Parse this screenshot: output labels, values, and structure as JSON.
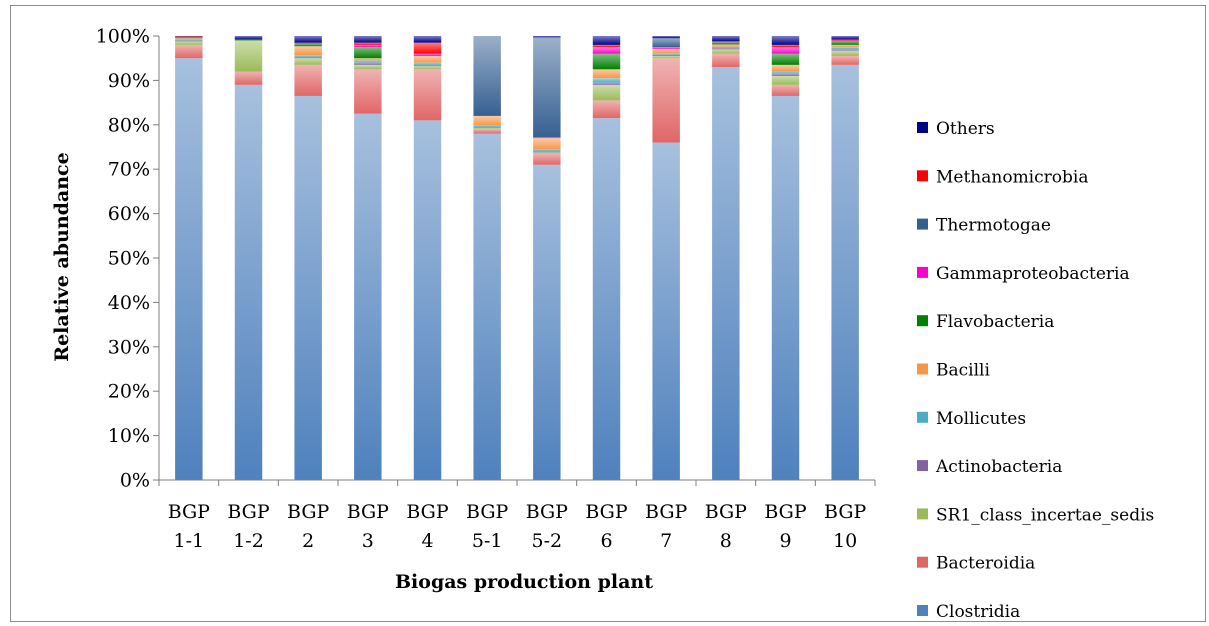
{
  "chart_data": {
    "type": "bar",
    "stacked": true,
    "percent": true,
    "title": "",
    "xlabel": "Biogas production plant",
    "ylabel": "Relative abundance",
    "ylim": [
      0,
      100
    ],
    "yticks": [
      "0%",
      "10%",
      "20%",
      "30%",
      "40%",
      "50%",
      "60%",
      "70%",
      "80%",
      "90%",
      "100%"
    ],
    "legend_position": "right",
    "gridlines": false,
    "categories": [
      [
        "BGP",
        "1-1"
      ],
      [
        "BGP",
        "1-2"
      ],
      [
        "BGP",
        "2"
      ],
      [
        "BGP",
        "3"
      ],
      [
        "BGP",
        "4"
      ],
      [
        "BGP",
        "5-1"
      ],
      [
        "BGP",
        "5-2"
      ],
      [
        "BGP",
        "6"
      ],
      [
        "BGP",
        "7"
      ],
      [
        "BGP",
        "8"
      ],
      [
        "BGP",
        "9"
      ],
      [
        "BGP",
        "10"
      ]
    ],
    "series": [
      {
        "name": "Clostridia",
        "color": "#4f81bd",
        "values": [
          95,
          89,
          86.5,
          82.5,
          81,
          78,
          71,
          81.5,
          76,
          93,
          86.5,
          93.5
        ]
      },
      {
        "name": "Bacteroidia",
        "color": "#e06666",
        "values": [
          3,
          3,
          7,
          10,
          11.5,
          1,
          2.5,
          4,
          19,
          3,
          2.5,
          2
        ]
      },
      {
        "name": "SR1_class_incertae_sedis",
        "color": "#9bbb59",
        "values": [
          0.8,
          7,
          1.5,
          1,
          0.7,
          0.3,
          0.3,
          3.5,
          0.5,
          1,
          2,
          1.2
        ]
      },
      {
        "name": "Actinobacteria",
        "color": "#8064a2",
        "values": [
          0.2,
          0,
          0.3,
          0.5,
          0.3,
          0.2,
          0.3,
          0.5,
          0.3,
          0.3,
          0.5,
          0.3
        ]
      },
      {
        "name": "Mollicutes",
        "color": "#4bacc6",
        "values": [
          0.2,
          0,
          0.4,
          0.5,
          0.5,
          0.3,
          0.3,
          1,
          0.3,
          0.3,
          0.5,
          0.5
        ]
      },
      {
        "name": "Bacilli",
        "color": "#f79646",
        "values": [
          0.3,
          0,
          2,
          0.5,
          1.5,
          2.2,
          2.6,
          2,
          1,
          0.5,
          1.5,
          0.5
        ]
      },
      {
        "name": "Flavobacteria",
        "color": "#008000",
        "values": [
          0.2,
          0.2,
          0.5,
          2.5,
          0,
          0,
          0,
          3.5,
          0,
          0.5,
          2.5,
          0.8
        ]
      },
      {
        "name": "Gammaproteobacteria",
        "color": "#ff00cc",
        "values": [
          0.1,
          0,
          0.2,
          0.5,
          0.5,
          0,
          0.2,
          1.5,
          0.4,
          0.2,
          1.5,
          0.2
        ]
      },
      {
        "name": "Thermotogae",
        "color": "#366092",
        "values": [
          0,
          0,
          0,
          0,
          0,
          18,
          22.5,
          0,
          2,
          0,
          0,
          0
        ]
      },
      {
        "name": "Methanomicrobia",
        "color": "#ff0000",
        "values": [
          0.1,
          0,
          0.1,
          0.5,
          2.5,
          0,
          0,
          0.5,
          0,
          0,
          0.5,
          0.2
        ]
      },
      {
        "name": "Others",
        "color": "#00008b",
        "values": [
          0.1,
          0.8,
          1.5,
          1.5,
          1.5,
          0,
          0.3,
          2,
          0.5,
          1.2,
          2,
          0.8
        ]
      }
    ]
  }
}
